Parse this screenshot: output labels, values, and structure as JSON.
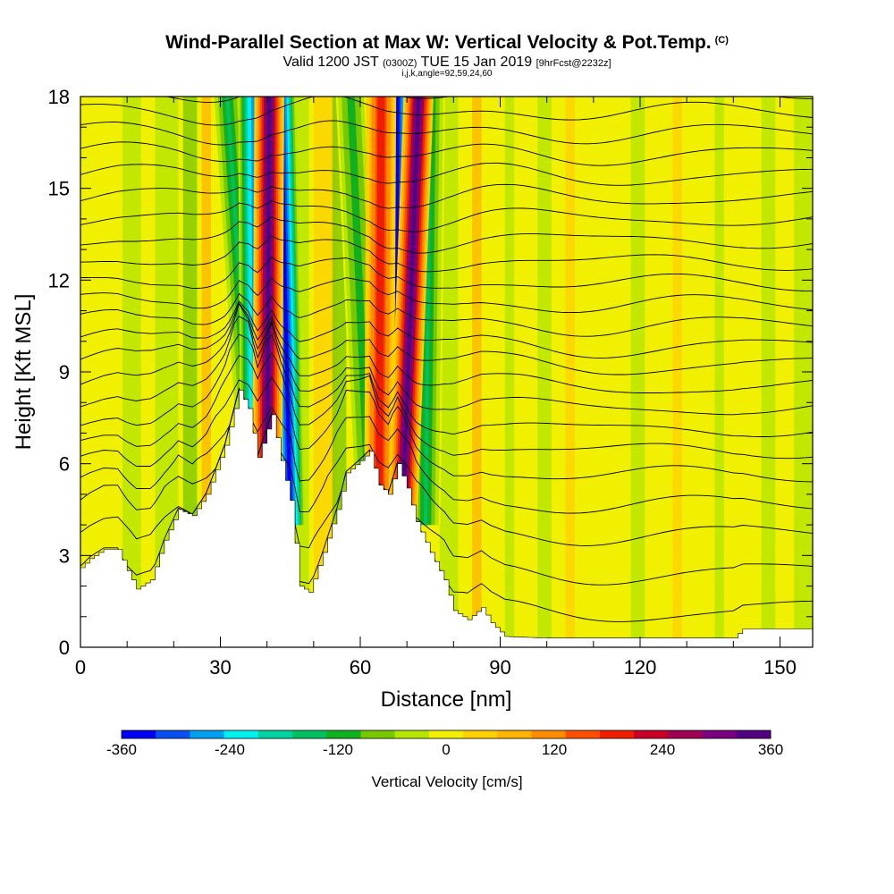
{
  "header": {
    "title": "Wind-Parallel Section at Max W: Vertical Velocity & Pot.Temp.",
    "copyright_mark": "(C)",
    "valid_prefix": "Valid 1200 JST",
    "valid_utc": "(0300Z)",
    "valid_date": "TUE 15 Jan 2019",
    "forecast": "[9hrFcst@2232z]",
    "indices": "i,j,k,angle=92,59,24,60"
  },
  "chart_data": {
    "type": "heatmap",
    "xlabel": "Distance [nm]",
    "ylabel": "Height [Kft MSL]",
    "xlim": [
      0,
      157
    ],
    "ylim": [
      0,
      18
    ],
    "x_ticks": [
      0,
      30,
      60,
      90,
      120,
      150
    ],
    "y_ticks": [
      0,
      3,
      6,
      9,
      12,
      15,
      18
    ],
    "terrain": [
      [
        0,
        2.6
      ],
      [
        2,
        2.9
      ],
      [
        5,
        3.2
      ],
      [
        8,
        3.2
      ],
      [
        10,
        2.5
      ],
      [
        12,
        1.9
      ],
      [
        15,
        2.2
      ],
      [
        18,
        3.5
      ],
      [
        21,
        4.5
      ],
      [
        24,
        4.3
      ],
      [
        27,
        5.0
      ],
      [
        31,
        6.6
      ],
      [
        34,
        8.4
      ],
      [
        36,
        7.8
      ],
      [
        38,
        6.2
      ],
      [
        41,
        7.6
      ],
      [
        43,
        6.1
      ],
      [
        45,
        4.8
      ],
      [
        47,
        2.0
      ],
      [
        49,
        1.8
      ],
      [
        52,
        3.1
      ],
      [
        55,
        4.5
      ],
      [
        57,
        5.7
      ],
      [
        60,
        6.1
      ],
      [
        62,
        6.4
      ],
      [
        64,
        5.3
      ],
      [
        66,
        5.0
      ],
      [
        68,
        6.0
      ],
      [
        70,
        5.2
      ],
      [
        72,
        4.1
      ],
      [
        75,
        3.1
      ],
      [
        78,
        2.2
      ],
      [
        80,
        1.2
      ],
      [
        83,
        0.9
      ],
      [
        86,
        1.3
      ],
      [
        88,
        0.8
      ],
      [
        91,
        0.35
      ],
      [
        100,
        0.3
      ],
      [
        120,
        0.3
      ],
      [
        140,
        0.3
      ],
      [
        142,
        0.6
      ],
      [
        157,
        0.6
      ]
    ],
    "updraft_bands": [
      {
        "x_top": 40.5,
        "x_bottom": 40.0,
        "peak": 330
      },
      {
        "x_top": 64.5,
        "x_bottom": 64.0,
        "peak": 200
      },
      {
        "x_top": 72.5,
        "x_bottom": 69.0,
        "peak": 330
      }
    ],
    "downdraft_bands": [
      {
        "x_top": 31.5,
        "x_bottom": 37.5,
        "peak": -150
      },
      {
        "x_top": 37.0,
        "x_bottom": 37.5,
        "peak": -280
      },
      {
        "x_top": 43.0,
        "x_bottom": 45.0,
        "peak": -360
      },
      {
        "x_top": 58.0,
        "x_bottom": 62.0,
        "peak": -120
      },
      {
        "x_top": 68.0,
        "x_bottom": 67.5,
        "peak": -360
      },
      {
        "x_top": 75.0,
        "x_bottom": 74.0,
        "peak": -150
      }
    ],
    "isentrope_bases": [
      1.0,
      2.3,
      3.6,
      4.6,
      5.6,
      6.4,
      7.1,
      7.8,
      8.5,
      9.2,
      9.8,
      10.5,
      11.2,
      11.9,
      12.6,
      13.3,
      14.0,
      14.7,
      15.4,
      16.1,
      16.8,
      17.5,
      18.2,
      18.9
    ],
    "colorbar": {
      "title": "Vertical Velocity [cm/s]",
      "min": -360,
      "max": 360,
      "tick_labels": [
        "-360",
        "-240",
        "-120",
        "0",
        "120",
        "240",
        "360"
      ],
      "colors": [
        "#0000f5",
        "#0a50f0",
        "#00a0f0",
        "#00f0f0",
        "#00d2a0",
        "#00c060",
        "#10b020",
        "#78c800",
        "#b4e600",
        "#f0f000",
        "#ffd000",
        "#ffb400",
        "#ff8c00",
        "#ff5000",
        "#f01e00",
        "#c80028",
        "#a00050",
        "#7a0080",
        "#500080"
      ]
    }
  }
}
